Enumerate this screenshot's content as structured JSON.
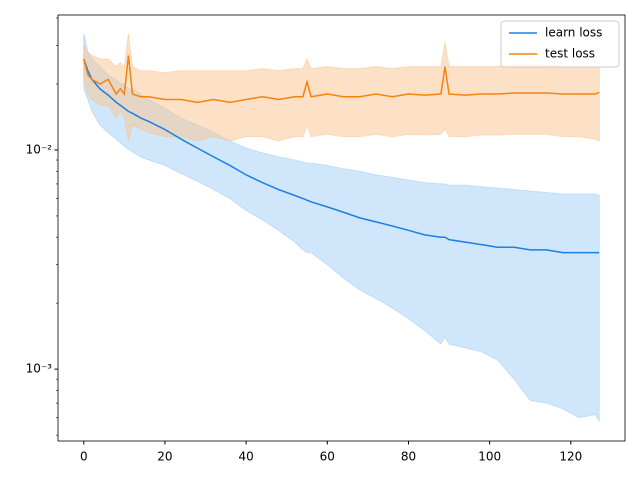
{
  "chart_data": {
    "type": "line",
    "x": [
      0,
      1,
      2,
      4,
      6,
      8,
      9,
      10,
      11,
      12,
      14,
      16,
      20,
      24,
      28,
      32,
      36,
      40,
      44,
      48,
      52,
      54,
      55,
      56,
      60,
      64,
      68,
      72,
      76,
      80,
      84,
      88,
      89,
      90,
      94,
      98,
      102,
      106,
      110,
      114,
      118,
      122,
      126,
      127
    ],
    "series": [
      {
        "name": "learn loss",
        "color": "#1a80e6",
        "band_color": "#9fcdf7",
        "values": [
          0.026,
          0.023,
          0.021,
          0.019,
          0.0178,
          0.0165,
          0.016,
          0.0155,
          0.015,
          0.0147,
          0.014,
          0.0135,
          0.0124,
          0.0112,
          0.0102,
          0.0093,
          0.0085,
          0.0077,
          0.0071,
          0.0066,
          0.0062,
          0.006,
          0.0059,
          0.0058,
          0.0055,
          0.0052,
          0.0049,
          0.0047,
          0.0045,
          0.0043,
          0.0041,
          0.004,
          0.004,
          0.0039,
          0.0038,
          0.0037,
          0.0036,
          0.0036,
          0.0035,
          0.0035,
          0.0034,
          0.0034,
          0.0034,
          0.0034
        ],
        "upper": [
          0.034,
          0.028,
          0.026,
          0.024,
          0.022,
          0.021,
          0.02,
          0.02,
          0.019,
          0.019,
          0.018,
          0.017,
          0.0155,
          0.014,
          0.013,
          0.012,
          0.011,
          0.0102,
          0.0097,
          0.0093,
          0.009,
          0.0088,
          0.0087,
          0.0087,
          0.0085,
          0.0082,
          0.008,
          0.0077,
          0.0075,
          0.0073,
          0.0071,
          0.007,
          0.007,
          0.0069,
          0.0069,
          0.0068,
          0.0067,
          0.0066,
          0.0065,
          0.0064,
          0.0063,
          0.0063,
          0.0063,
          0.0062
        ],
        "lower": [
          0.019,
          0.017,
          0.015,
          0.013,
          0.012,
          0.0112,
          0.0108,
          0.0104,
          0.0101,
          0.0098,
          0.0093,
          0.009,
          0.0085,
          0.0078,
          0.0072,
          0.0066,
          0.006,
          0.0053,
          0.0048,
          0.0043,
          0.0038,
          0.0035,
          0.0034,
          0.0034,
          0.003,
          0.0026,
          0.0023,
          0.0021,
          0.0019,
          0.0017,
          0.0015,
          0.0013,
          0.0014,
          0.0013,
          0.00125,
          0.0012,
          0.0011,
          0.0009,
          0.00072,
          0.0007,
          0.00066,
          0.0006,
          0.00062,
          0.00058
        ]
      },
      {
        "name": "test loss",
        "color": "#f5830f",
        "band_color": "#fcc48e",
        "values": [
          0.026,
          0.022,
          0.021,
          0.02,
          0.021,
          0.018,
          0.019,
          0.018,
          0.027,
          0.018,
          0.0175,
          0.0175,
          0.017,
          0.017,
          0.0165,
          0.017,
          0.0165,
          0.017,
          0.0175,
          0.017,
          0.0175,
          0.0175,
          0.0205,
          0.0175,
          0.018,
          0.0175,
          0.0175,
          0.018,
          0.0175,
          0.018,
          0.0178,
          0.018,
          0.024,
          0.018,
          0.0178,
          0.018,
          0.018,
          0.0182,
          0.0182,
          0.0182,
          0.018,
          0.018,
          0.018,
          0.0183
        ],
        "upper": [
          0.03,
          0.028,
          0.027,
          0.026,
          0.026,
          0.024,
          0.025,
          0.024,
          0.034,
          0.024,
          0.023,
          0.023,
          0.0225,
          0.023,
          0.023,
          0.023,
          0.023,
          0.023,
          0.0235,
          0.023,
          0.0235,
          0.0235,
          0.026,
          0.0235,
          0.024,
          0.0235,
          0.0235,
          0.024,
          0.0235,
          0.024,
          0.024,
          0.024,
          0.031,
          0.024,
          0.024,
          0.024,
          0.024,
          0.0245,
          0.0245,
          0.0245,
          0.024,
          0.024,
          0.024,
          0.024
        ],
        "lower": [
          0.021,
          0.018,
          0.017,
          0.016,
          0.016,
          0.014,
          0.015,
          0.014,
          0.011,
          0.013,
          0.0125,
          0.012,
          0.0115,
          0.0115,
          0.011,
          0.0115,
          0.011,
          0.0115,
          0.0115,
          0.011,
          0.0115,
          0.0115,
          0.013,
          0.0115,
          0.0118,
          0.0115,
          0.0115,
          0.0118,
          0.0115,
          0.0118,
          0.0117,
          0.0118,
          0.0125,
          0.0115,
          0.0115,
          0.0117,
          0.0117,
          0.0118,
          0.0118,
          0.0118,
          0.0115,
          0.0115,
          0.0112,
          0.011
        ]
      }
    ],
    "xlim": [
      -6.35,
      133.35
    ],
    "xticks": [
      0,
      20,
      40,
      60,
      80,
      100,
      120
    ],
    "ylim": [
      0.00047,
      0.0413
    ],
    "log_y": true,
    "yticks": [
      {
        "value": 0.001,
        "label": "10⁻³"
      },
      {
        "value": 0.01,
        "label": "10⁻²"
      }
    ],
    "yminorticks": [
      0.0005,
      0.0006,
      0.0007,
      0.0008,
      0.0009,
      0.002,
      0.003,
      0.004,
      0.005,
      0.006,
      0.007,
      0.008,
      0.009,
      0.02,
      0.03,
      0.04
    ],
    "legend": "upper right"
  }
}
